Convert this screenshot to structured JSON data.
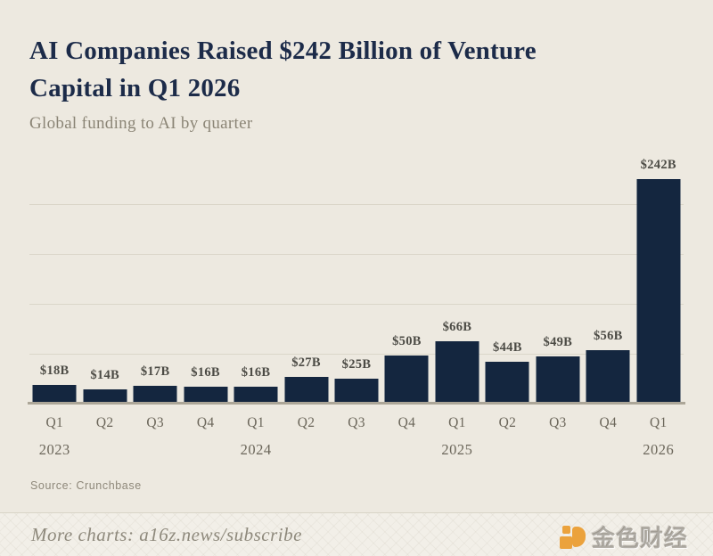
{
  "header": {
    "title_line1": "AI Companies Raised $242 Billion of Venture",
    "title_line2": "Capital in Q1 2026",
    "subtitle": "Global funding to AI by quarter"
  },
  "chart_data": {
    "type": "bar",
    "title": "AI Companies Raised $242 Billion of Venture Capital in Q1 2026",
    "subtitle": "Global funding to AI by quarter",
    "categories": [
      "Q1",
      "Q2",
      "Q3",
      "Q4",
      "Q1",
      "Q2",
      "Q3",
      "Q4",
      "Q1",
      "Q2",
      "Q3",
      "Q4",
      "Q1"
    ],
    "year_labels": [
      {
        "index": 0,
        "label": "2023"
      },
      {
        "index": 4,
        "label": "2024"
      },
      {
        "index": 8,
        "label": "2025"
      },
      {
        "index": 12,
        "label": "2026"
      }
    ],
    "values": [
      18,
      14,
      17,
      16,
      16,
      27,
      25,
      50,
      66,
      44,
      49,
      56,
      242
    ],
    "value_labels": [
      "$18B",
      "$14B",
      "$17B",
      "$16B",
      "$16B",
      "$27B",
      "$25B",
      "$50B",
      "$66B",
      "$44B",
      "$49B",
      "$56B",
      "$242B"
    ],
    "unit": "billions USD",
    "xlabel": "",
    "ylabel": "",
    "ylim": [
      0,
      260
    ],
    "grid": true,
    "legend": "none",
    "bar_color": "#14263F"
  },
  "source": {
    "label": "Source: Crunchbase"
  },
  "footer": {
    "text": "More charts: a16z.news/subscribe",
    "watermark_text": "金色财经"
  },
  "colors": {
    "background": "#EDE9E0",
    "bar": "#14263F",
    "title": "#1C2B49",
    "subtitle": "#8B8576",
    "gridline": "#DBD6C9",
    "axis_text": "#6B665A",
    "footer_bg": "#F2EFE8",
    "watermark_orange": "#EBA23C"
  }
}
